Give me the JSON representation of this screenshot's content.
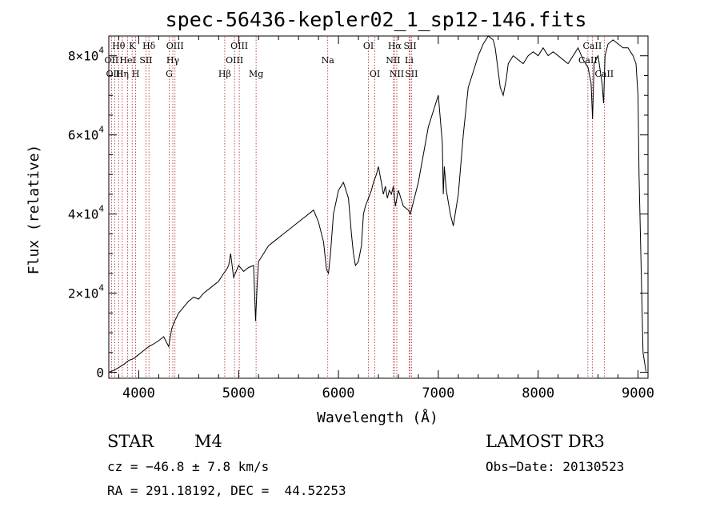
{
  "chart_data": {
    "type": "line",
    "title": "spec-56436-kepler02_1_sp12-146.fits",
    "xlabel": "Wavelength (Å)",
    "ylabel": "Flux (relative)",
    "xlim": [
      3700,
      9100
    ],
    "ylim": [
      -1500,
      85000
    ],
    "x_ticks": [
      4000,
      5000,
      6000,
      7000,
      8000,
      9000
    ],
    "x_tick_labels": [
      "4000",
      "5000",
      "6000",
      "7000",
      "8000",
      "9000"
    ],
    "y_ticks": [
      0,
      20000,
      40000,
      60000,
      80000
    ],
    "y_tick_labels": [
      {
        "mant": "0",
        "exp": ""
      },
      {
        "mant": "2×10",
        "exp": "4"
      },
      {
        "mant": "4×10",
        "exp": "4"
      },
      {
        "mant": "6×10",
        "exp": "4"
      },
      {
        "mant": "8×10",
        "exp": "4"
      }
    ],
    "series": [
      {
        "name": "flux",
        "x": [
          3700,
          3750,
          3800,
          3850,
          3900,
          3950,
          4000,
          4050,
          4100,
          4150,
          4200,
          4250,
          4300,
          4330,
          4360,
          4400,
          4450,
          4500,
          4550,
          4600,
          4650,
          4700,
          4750,
          4800,
          4850,
          4880,
          4900,
          4920,
          4950,
          5000,
          5050,
          5100,
          5150,
          5170,
          5185,
          5200,
          5250,
          5300,
          5350,
          5400,
          5450,
          5500,
          5550,
          5600,
          5650,
          5700,
          5750,
          5800,
          5850,
          5880,
          5900,
          5920,
          5950,
          6000,
          6050,
          6100,
          6130,
          6150,
          6170,
          6200,
          6230,
          6250,
          6270,
          6300,
          6330,
          6350,
          6380,
          6400,
          6430,
          6450,
          6470,
          6490,
          6510,
          6530,
          6550,
          6570,
          6600,
          6650,
          6700,
          6720,
          6740,
          6760,
          6800,
          6850,
          6900,
          6950,
          7000,
          7040,
          7050,
          7060,
          7080,
          7100,
          7120,
          7150,
          7200,
          7250,
          7300,
          7350,
          7400,
          7450,
          7500,
          7550,
          7570,
          7600,
          7620,
          7650,
          7680,
          7700,
          7750,
          7800,
          7850,
          7900,
          7950,
          8000,
          8050,
          8100,
          8150,
          8200,
          8250,
          8300,
          8350,
          8400,
          8450,
          8500,
          8530,
          8545,
          8560,
          8600,
          8640,
          8655,
          8670,
          8700,
          8750,
          8800,
          8850,
          8900,
          8950,
          8980,
          9000,
          9010,
          9050,
          9080
        ],
        "y": [
          0,
          500,
          1200,
          2000,
          3000,
          3500,
          4500,
          5500,
          6500,
          7200,
          8000,
          9000,
          6500,
          11000,
          13000,
          15000,
          16500,
          18000,
          19000,
          18500,
          20000,
          21000,
          22000,
          23000,
          25000,
          26000,
          27000,
          30000,
          24000,
          27000,
          25500,
          26500,
          27000,
          13000,
          22000,
          28000,
          30000,
          32000,
          33000,
          34000,
          35000,
          36000,
          37000,
          38000,
          39000,
          40000,
          41000,
          38000,
          33000,
          26000,
          25000,
          30000,
          40000,
          46000,
          48000,
          44000,
          35000,
          30000,
          27000,
          28000,
          32000,
          40000,
          42000,
          44000,
          46000,
          48000,
          50000,
          52000,
          48000,
          45000,
          47000,
          44000,
          46000,
          45000,
          47000,
          42000,
          46000,
          42000,
          41000,
          40000,
          42000,
          44000,
          48000,
          55000,
          62000,
          66000,
          70000,
          58000,
          45000,
          52000,
          46000,
          43000,
          40000,
          37000,
          45000,
          60000,
          72000,
          76000,
          80000,
          83000,
          85000,
          84000,
          82000,
          76000,
          72000,
          70000,
          74000,
          78000,
          80000,
          79000,
          78000,
          80000,
          81000,
          80000,
          82000,
          80000,
          81000,
          80000,
          79000,
          78000,
          80000,
          82000,
          79000,
          77000,
          73000,
          64000,
          78000,
          80000,
          73000,
          68000,
          80000,
          83000,
          84000,
          83000,
          82000,
          82000,
          80000,
          78000,
          70000,
          50000,
          5000,
          200
        ]
      }
    ],
    "lines": [
      {
        "label": "Hθ",
        "wl": 3798,
        "row": 0
      },
      {
        "label": "OII",
        "wl": 3727,
        "row": 1
      },
      {
        "label": "OIII",
        "wl": 3760,
        "row": 2
      },
      {
        "label": "K",
        "wl": 3934,
        "row": 0
      },
      {
        "label": "Hη",
        "wl": 3835,
        "row": 2
      },
      {
        "label": "HeI",
        "wl": 3889,
        "row": 1
      },
      {
        "label": "H",
        "wl": 3969,
        "row": 2
      },
      {
        "label": "SII",
        "wl": 4072,
        "row": 1
      },
      {
        "label": "Hδ",
        "wl": 4102,
        "row": 0
      },
      {
        "label": "OIII",
        "wl": 4363,
        "row": 0
      },
      {
        "label": "Hγ",
        "wl": 4341,
        "row": 1
      },
      {
        "label": "G",
        "wl": 4305,
        "row": 2
      },
      {
        "label": "OIII",
        "wl": 5007,
        "row": 0
      },
      {
        "label": "OIII",
        "wl": 4959,
        "row": 1
      },
      {
        "label": "Hβ",
        "wl": 4861,
        "row": 2
      },
      {
        "label": "Mg",
        "wl": 5175,
        "row": 2
      },
      {
        "label": "Na",
        "wl": 5893,
        "row": 1
      },
      {
        "label": "OI",
        "wl": 6300,
        "row": 0
      },
      {
        "label": "OI",
        "wl": 6364,
        "row": 2
      },
      {
        "label": "Hα",
        "wl": 6563,
        "row": 0
      },
      {
        "label": "SII",
        "wl": 6717,
        "row": 0
      },
      {
        "label": "NII",
        "wl": 6548,
        "row": 1
      },
      {
        "label": "Li",
        "wl": 6708,
        "row": 1
      },
      {
        "label": "NII",
        "wl": 6584,
        "row": 2
      },
      {
        "label": "SII",
        "wl": 6731,
        "row": 2
      },
      {
        "label": "CaII",
        "wl": 8542,
        "row": 0
      },
      {
        "label": "CaII",
        "wl": 8498,
        "row": 1
      },
      {
        "label": "CaII",
        "wl": 8662,
        "row": 2
      }
    ]
  },
  "info": {
    "class_label": "STAR",
    "subclass": "M4",
    "cz": "cz = −46.8 ± 7.8 km/s",
    "coords": "RA = 291.18192, DEC =  44.52253",
    "survey": "LAMOST DR3",
    "obs_date": "Obs−Date: 20130523"
  }
}
